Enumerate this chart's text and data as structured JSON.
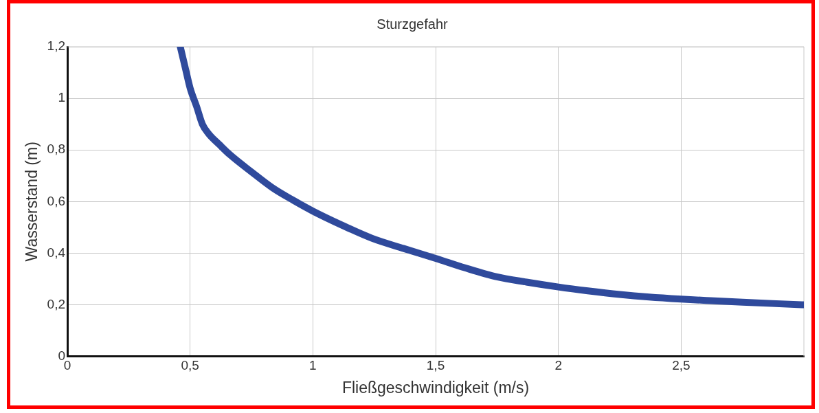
{
  "chart_data": {
    "type": "line",
    "title": "Sturzgefahr",
    "xlabel": "Fließgeschwindigkeit (m/s)",
    "ylabel": "Wasserstand (m)",
    "x": [
      0.46,
      0.48,
      0.5,
      0.527,
      0.55,
      0.576,
      0.62,
      0.663,
      0.75,
      0.836,
      0.92,
      1.0,
      1.12,
      1.24,
      1.37,
      1.5,
      1.62,
      1.75,
      1.87,
      2.0,
      2.12,
      2.25,
      2.37,
      2.5,
      2.62,
      2.75,
      2.87,
      3.0
    ],
    "series": [
      {
        "color": "#2f4a9c",
        "values": [
          1.2,
          1.12,
          1.04,
          0.967,
          0.9,
          0.862,
          0.82,
          0.781,
          0.715,
          0.653,
          0.605,
          0.563,
          0.508,
          0.458,
          0.418,
          0.38,
          0.343,
          0.308,
          0.288,
          0.269,
          0.254,
          0.24,
          0.23,
          0.222,
          0.216,
          0.21,
          0.205,
          0.2
        ]
      }
    ],
    "xlim": [
      0,
      3
    ],
    "ylim": [
      0,
      1.2
    ],
    "xticks": [
      0,
      {
        "value": 0.5,
        "label": "0,5"
      },
      1,
      {
        "value": 1.5,
        "label": "1,5"
      },
      2,
      {
        "value": 2.5,
        "label": "2,5"
      }
    ],
    "yticks": [
      0,
      {
        "value": 0.2,
        "label": "0,2"
      },
      {
        "value": 0.4,
        "label": "0,4"
      },
      {
        "value": 0.6,
        "label": "0,6"
      },
      {
        "value": 0.8,
        "label": "0,8"
      },
      1,
      {
        "value": 1.2,
        "label": "1,2"
      }
    ],
    "grid": true,
    "legend": false,
    "marker": "none",
    "line_style": "solid"
  }
}
